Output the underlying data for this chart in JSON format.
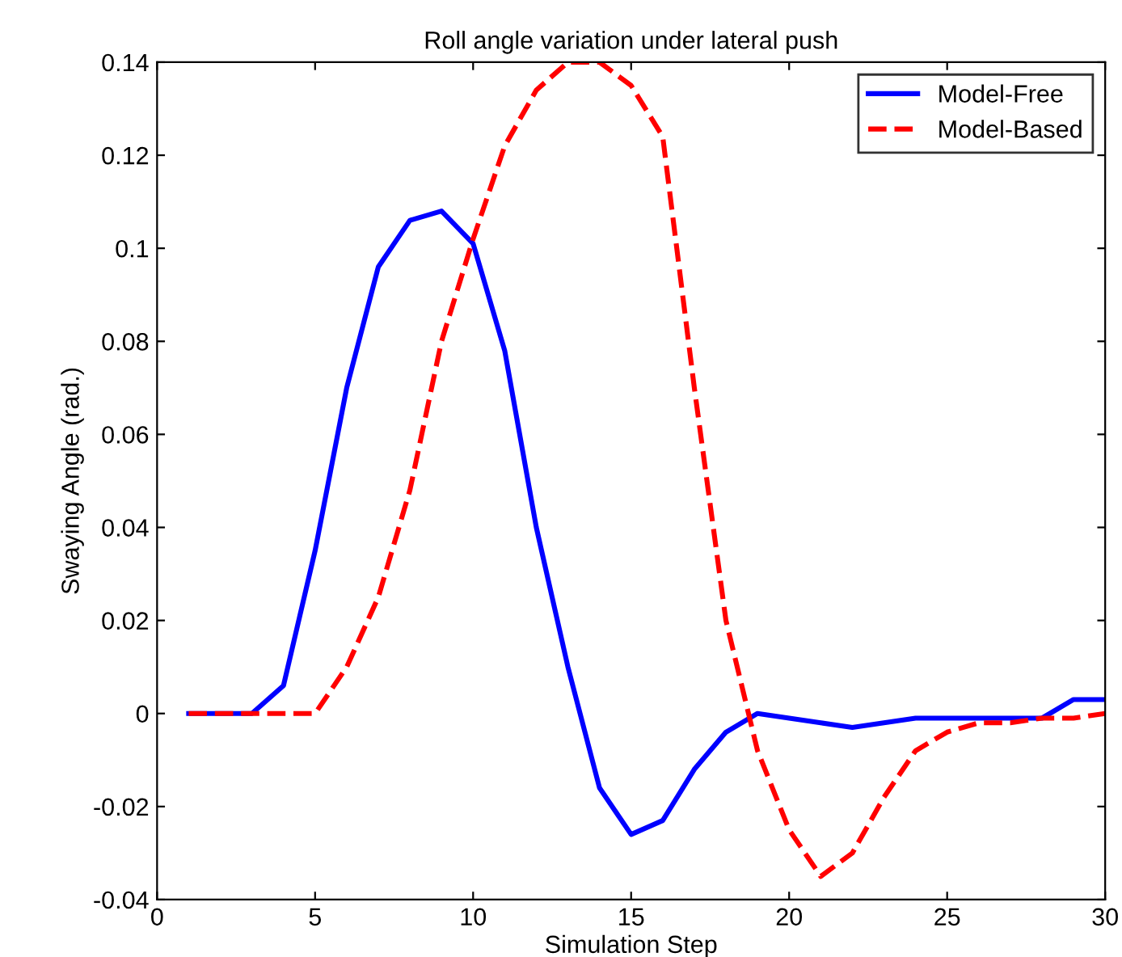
{
  "chart_data": {
    "type": "line",
    "title": "Roll angle variation under lateral push",
    "xlabel": "Simulation Step",
    "ylabel": "Swaying Angle (rad.)",
    "x": [
      1,
      2,
      3,
      4,
      5,
      6,
      7,
      8,
      9,
      10,
      11,
      12,
      13,
      14,
      15,
      16,
      17,
      18,
      19,
      20,
      21,
      22,
      23,
      24,
      25,
      26,
      27,
      28,
      29,
      30
    ],
    "series": [
      {
        "name": "Model-Free",
        "color": "#0000ff",
        "line_style": "solid",
        "values": [
          0,
          0,
          0,
          0.006,
          0.035,
          0.07,
          0.096,
          0.106,
          0.108,
          0.101,
          0.078,
          0.04,
          0.01,
          -0.016,
          -0.026,
          -0.023,
          -0.012,
          -0.004,
          0,
          -0.001,
          -0.002,
          -0.003,
          -0.002,
          -0.001,
          -0.001,
          -0.001,
          -0.001,
          -0.001,
          0.003,
          0.003
        ]
      },
      {
        "name": "Model-Based",
        "color": "#ff0000",
        "line_style": "dashed",
        "values": [
          0,
          0,
          0,
          0,
          0,
          0.01,
          0.025,
          0.048,
          0.08,
          0.102,
          0.122,
          0.134,
          0.14,
          0.14,
          0.135,
          0.124,
          0.07,
          0.02,
          -0.008,
          -0.025,
          -0.035,
          -0.03,
          -0.018,
          -0.008,
          -0.004,
          -0.002,
          -0.002,
          -0.001,
          -0.001,
          0
        ]
      }
    ],
    "xlim": [
      0,
      30
    ],
    "xticks": [
      0,
      5,
      10,
      15,
      20,
      25,
      30
    ],
    "ylim": [
      -0.04,
      0.14
    ],
    "yticks": [
      {
        "value": -0.04,
        "label": "-0.04"
      },
      {
        "value": -0.02,
        "label": "-0.02"
      },
      0,
      {
        "value": 0.02,
        "label": "0.02"
      },
      {
        "value": 0.04,
        "label": "0.04"
      },
      {
        "value": 0.06,
        "label": "0.06"
      },
      {
        "value": 0.08,
        "label": "0.08"
      },
      0.1,
      {
        "value": 0.12,
        "label": "0.12"
      },
      {
        "value": 0.14,
        "label": "0.14"
      }
    ],
    "grid": false,
    "legend": "top right",
    "marker": "none"
  }
}
